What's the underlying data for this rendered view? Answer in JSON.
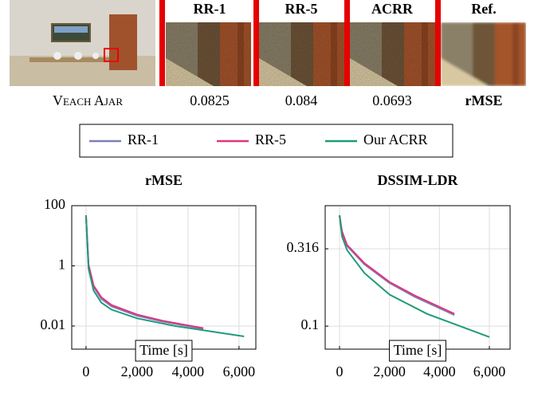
{
  "figure": {
    "scene_label": "Veach Ajar",
    "metric_label": "rMSE",
    "reference_header": "Ref.",
    "columns": [
      {
        "header": "RR-1",
        "value": 0.0825
      },
      {
        "header": "RR-5",
        "value": 0.084
      },
      {
        "header": "ACRR",
        "value": 0.0693
      }
    ]
  },
  "chart_data": [
    {
      "type": "line",
      "title": "rMSE",
      "xlabel": "Time [s]",
      "log_y": true,
      "grid": true,
      "xlim": [
        -560,
        6660
      ],
      "ylim": [
        0.0017,
        100
      ],
      "xticks": [
        0,
        {
          "value": 2000,
          "label": "2,000"
        },
        {
          "value": 4000,
          "label": "4,000"
        },
        {
          "value": 6000,
          "label": "6,000"
        }
      ],
      "yticks": [
        100,
        1,
        0.01
      ],
      "series": [
        {
          "name": "RR-1",
          "color": "#7b7fb8",
          "x": [
            0,
            100,
            300,
            600,
            1000,
            2000,
            3000,
            4600
          ],
          "values": [
            48,
            1,
            0.2,
            0.08,
            0.045,
            0.022,
            0.014,
            0.008
          ]
        },
        {
          "name": "RR-5",
          "color": "#e0357f",
          "x": [
            0,
            100,
            300,
            600,
            1000,
            2000,
            3000,
            4600
          ],
          "values": [
            48,
            1.1,
            0.22,
            0.09,
            0.05,
            0.024,
            0.015,
            0.0085
          ]
        },
        {
          "name": "Our ACRR",
          "color": "#1f9a7a",
          "x": [
            0,
            100,
            300,
            600,
            1000,
            2000,
            3500,
            6200
          ],
          "values": [
            48,
            0.8,
            0.15,
            0.06,
            0.035,
            0.018,
            0.01,
            0.0045
          ]
        }
      ]
    },
    {
      "type": "line",
      "title": "DSSIM-LDR",
      "xlabel": "Time [s]",
      "log_y": true,
      "grid": true,
      "xlim": [
        -575,
        6830
      ],
      "ylim": [
        0.071,
        0.6
      ],
      "xticks": [
        0,
        {
          "value": 2000,
          "label": "2,000"
        },
        {
          "value": 4000,
          "label": "4,000"
        },
        {
          "value": 6000,
          "label": "6,000"
        }
      ],
      "yticks": [
        0.316,
        0.1
      ],
      "series": [
        {
          "color": "#7b7fb8",
          "x": [
            0,
            100,
            300,
            1000,
            2000,
            3000,
            4600
          ],
          "values": [
            0.52,
            0.4,
            0.33,
            0.25,
            0.19,
            0.155,
            0.118
          ]
        },
        {
          "color": "#e0357f",
          "x": [
            0,
            100,
            300,
            1000,
            2000,
            3000,
            4600
          ],
          "values": [
            0.52,
            0.41,
            0.335,
            0.255,
            0.193,
            0.158,
            0.12
          ]
        },
        {
          "color": "#1f9a7a",
          "x": [
            0,
            100,
            300,
            1000,
            2000,
            3500,
            6000
          ],
          "values": [
            0.52,
            0.38,
            0.31,
            0.22,
            0.16,
            0.12,
            0.085
          ]
        }
      ]
    }
  ]
}
